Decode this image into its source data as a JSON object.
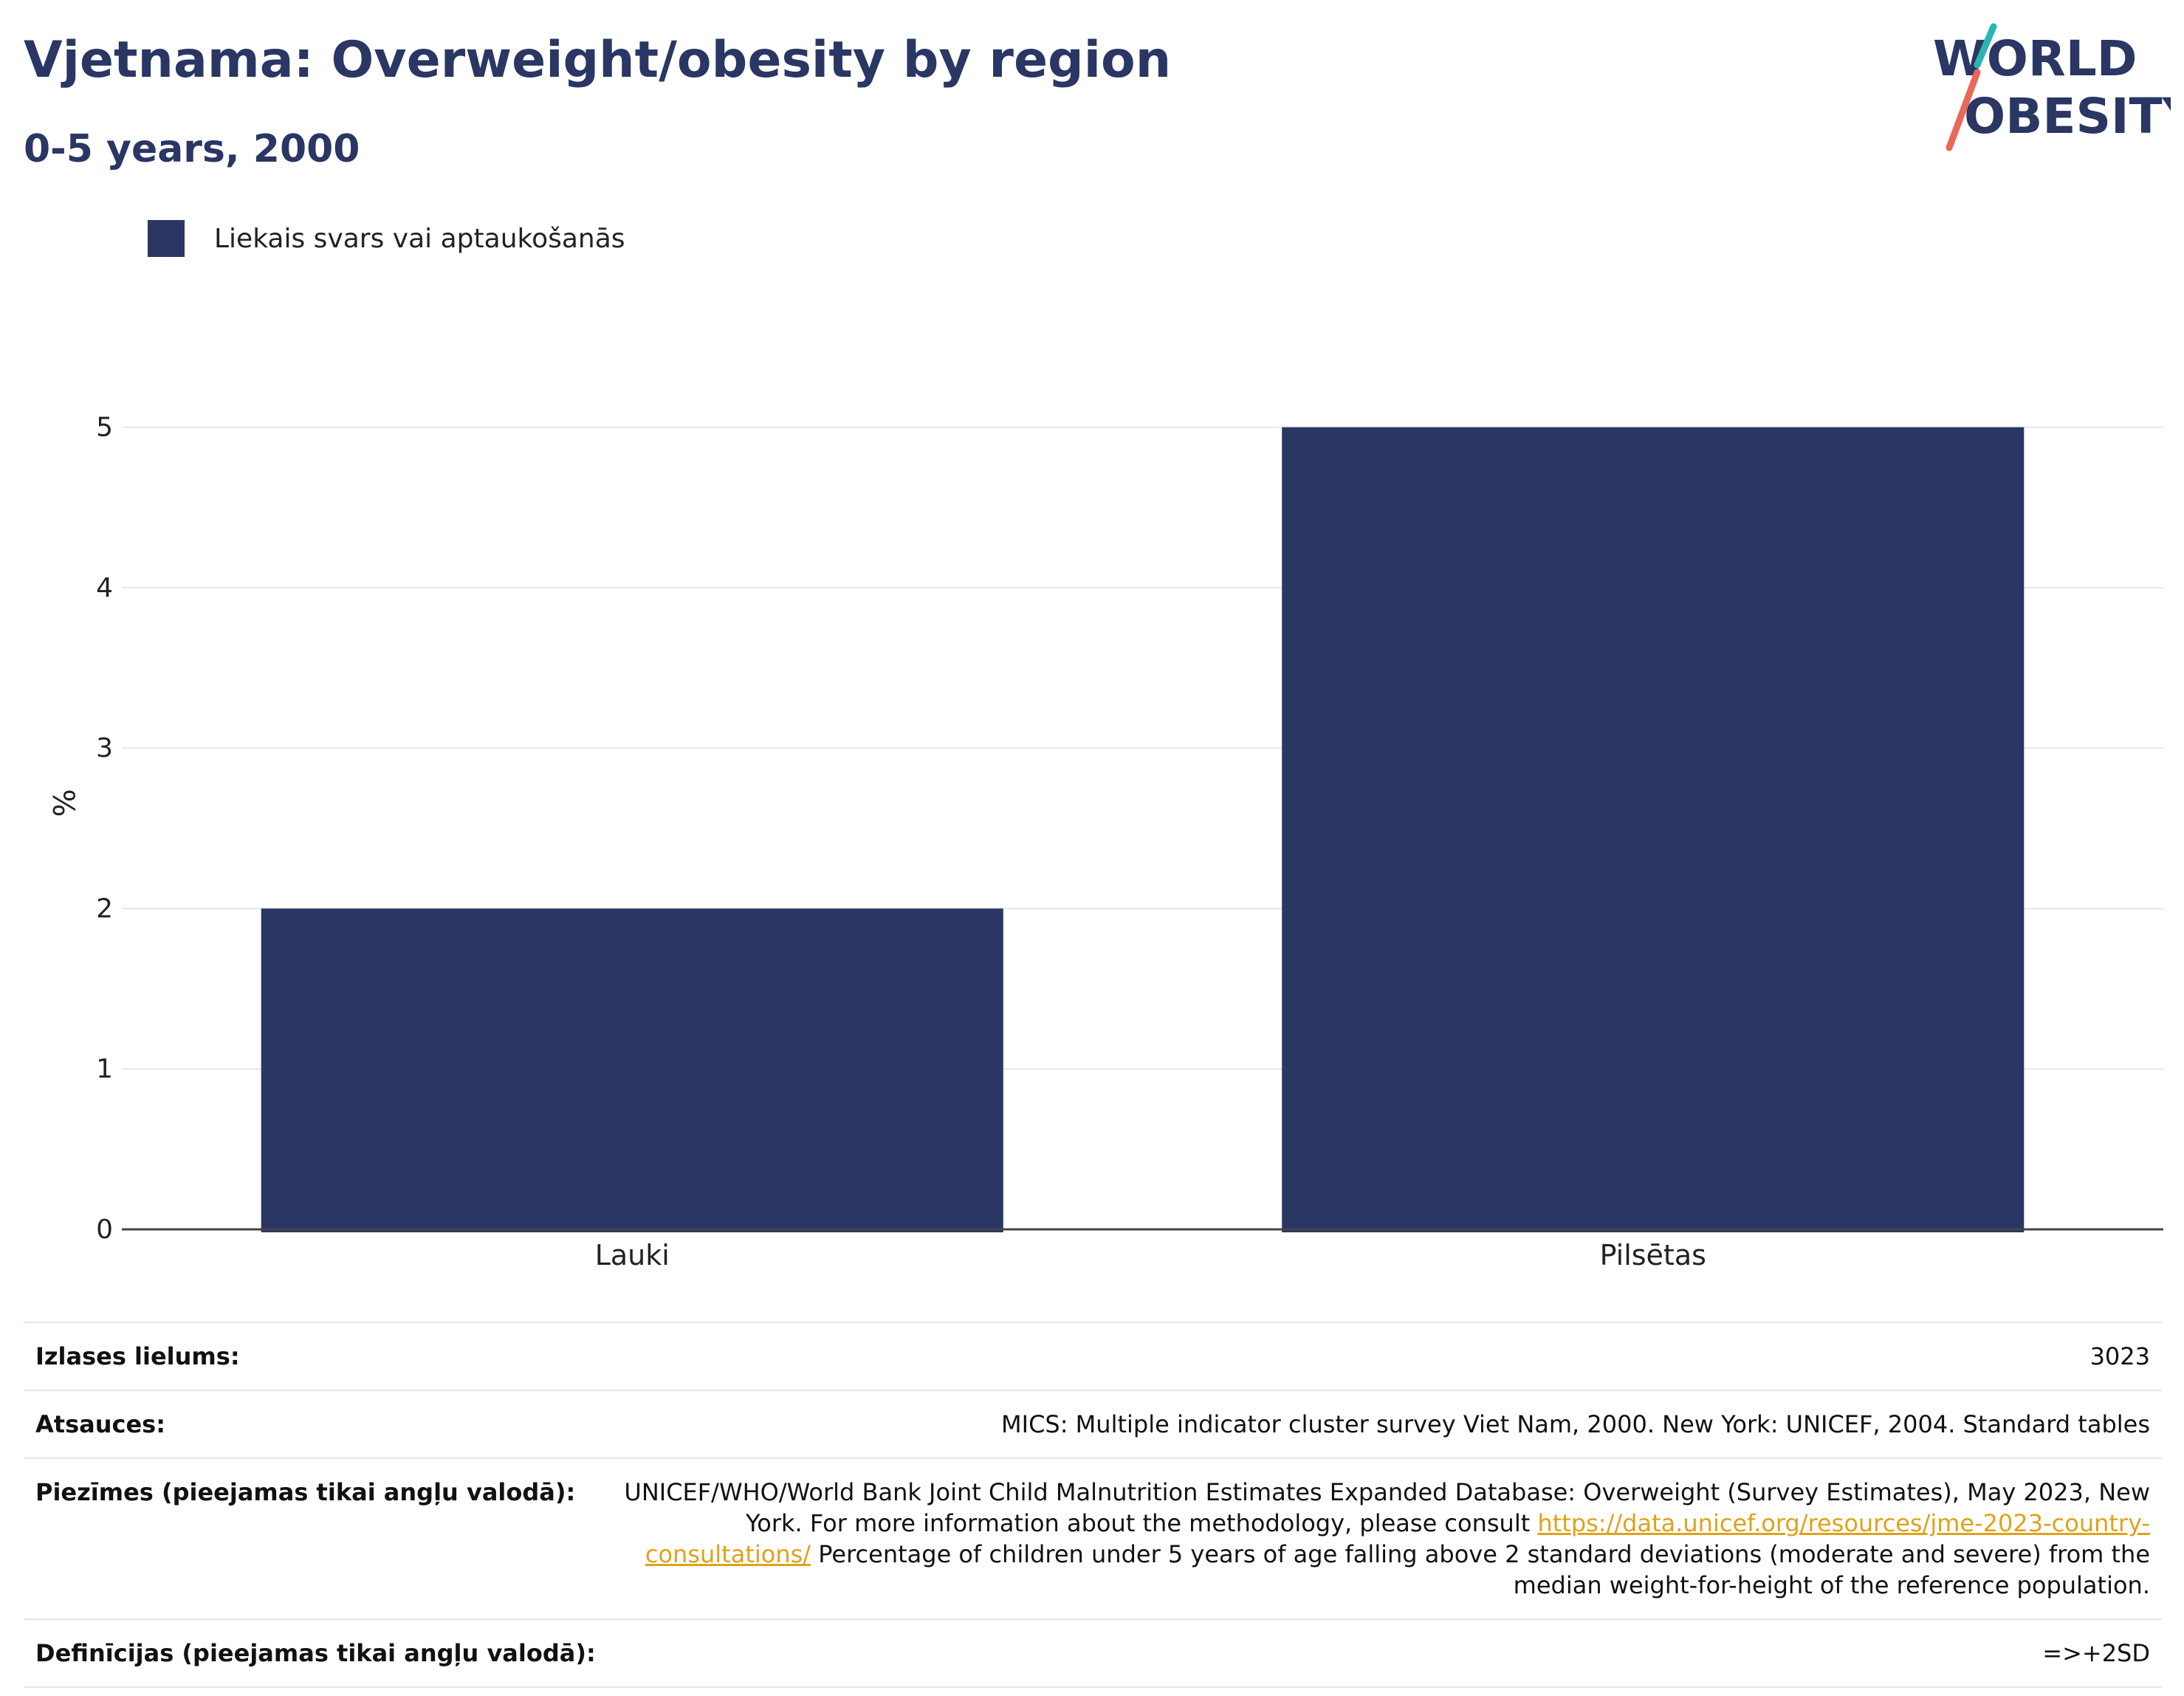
{
  "header": {
    "title": "Vjetnama: Overweight/obesity by region",
    "subtitle": "0-5 years, 2000"
  },
  "logo": {
    "line1": "WORLD",
    "line2": "OBESITY",
    "colors": {
      "text": "#2a3663",
      "slash_top": "#2bb5b0",
      "slash_bottom": "#e8685a"
    }
  },
  "legend": {
    "label": "Liekais svars vai aptaukošanās",
    "color": "#2a3663"
  },
  "chart_data": {
    "type": "bar",
    "categories": [
      "Lauki",
      "Pilsētas"
    ],
    "series": [
      {
        "name": "Liekais svars vai aptaukošanās",
        "values": [
          2.0,
          5.0
        ]
      }
    ],
    "ylabel": "%",
    "xlabel": "",
    "ylim": [
      0,
      5.5
    ],
    "yticks": [
      0,
      1,
      2,
      3,
      4,
      5
    ],
    "grid": true,
    "legend_position": "top-left",
    "bar_color": "#2a3663"
  },
  "info": {
    "sample_size": {
      "label": "Izlases lielums:",
      "value": "3023"
    },
    "references": {
      "label": "Atsauces:",
      "value": "MICS: Multiple indicator cluster survey Viet Nam, 2000. New York: UNICEF, 2004. Standard tables"
    },
    "notes": {
      "label": "Piezīmes (pieejamas tikai angļu valodā):",
      "text_before": "UNICEF/WHO/World Bank Joint Child Malnutrition Estimates Expanded Database: Overweight (Survey Estimates), May 2023, New York. For more information about the methodology, please consult",
      "link": "https://data.unicef.org/resources/jme-2023-country-consultations/",
      "text_after": "Percentage of children under 5 years of age falling above 2 standard deviations (moderate and severe) from the median weight-for-height of the reference population."
    },
    "definitions": {
      "label": "Definīcijas (pieejamas tikai angļu valodā):",
      "value": "=>+2SD"
    }
  }
}
